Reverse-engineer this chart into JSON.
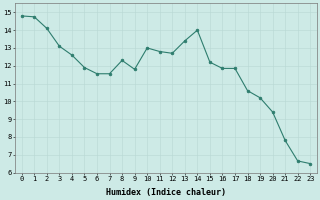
{
  "x": [
    0,
    1,
    2,
    3,
    4,
    5,
    6,
    7,
    8,
    9,
    10,
    11,
    12,
    13,
    14,
    15,
    16,
    17,
    18,
    19,
    20,
    21,
    22,
    23
  ],
  "y": [
    14.8,
    14.75,
    14.1,
    13.1,
    12.6,
    11.9,
    11.55,
    11.55,
    12.3,
    11.8,
    13.0,
    12.8,
    12.7,
    13.4,
    14.0,
    12.2,
    11.85,
    11.85,
    10.6,
    10.2,
    9.4,
    7.8,
    6.65,
    6.5
  ],
  "line_color": "#2e7d6e",
  "marker_color": "#2e7d6e",
  "bg_color": "#cdeae6",
  "grid_color_major": "#b8d8d4",
  "grid_color_minor": "#d0e8e4",
  "xlabel": "Humidex (Indice chaleur)",
  "xlim": [
    -0.5,
    23.5
  ],
  "ylim": [
    6,
    15.5
  ],
  "yticks": [
    6,
    7,
    8,
    9,
    10,
    11,
    12,
    13,
    14,
    15
  ],
  "xticks": [
    0,
    1,
    2,
    3,
    4,
    5,
    6,
    7,
    8,
    9,
    10,
    11,
    12,
    13,
    14,
    15,
    16,
    17,
    18,
    19,
    20,
    21,
    22,
    23
  ],
  "xtick_labels": [
    "0",
    "1",
    "2",
    "3",
    "4",
    "5",
    "6",
    "7",
    "8",
    "9",
    "10",
    "11",
    "12",
    "13",
    "14",
    "15",
    "16",
    "17",
    "18",
    "19",
    "20",
    "21",
    "22",
    "23"
  ],
  "axis_fontsize": 5.5,
  "tick_fontsize": 5.0,
  "xlabel_fontsize": 6.0,
  "linewidth": 0.8,
  "markersize": 2.0
}
